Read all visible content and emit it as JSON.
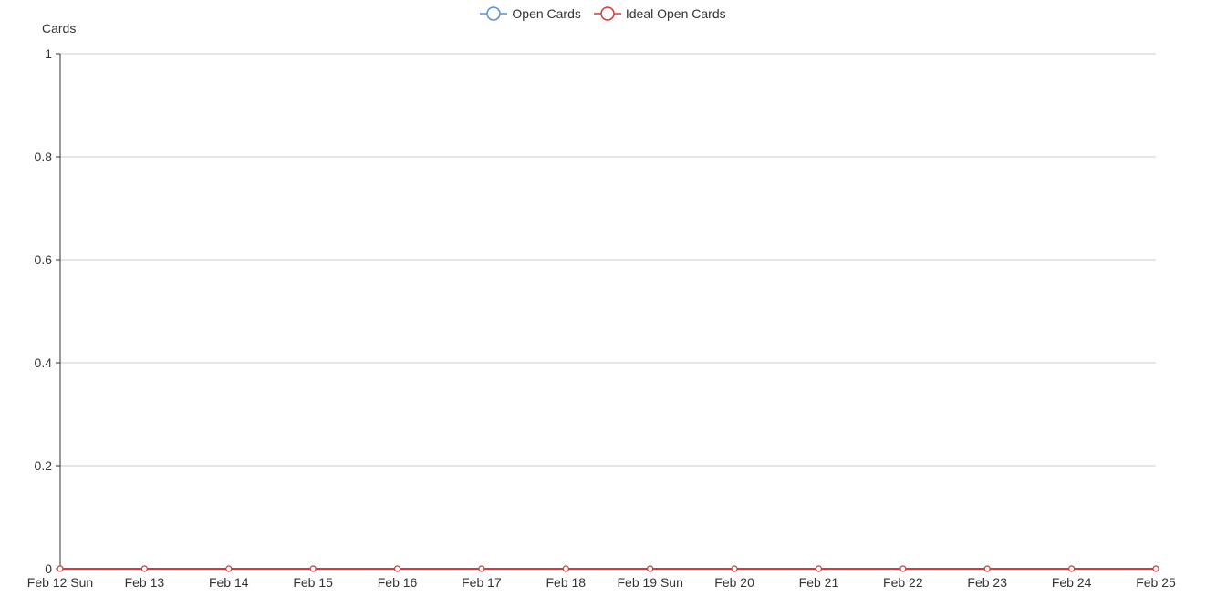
{
  "chart_data": {
    "type": "line",
    "ylabel": "Cards",
    "xlabel": "",
    "ylim": [
      0,
      1
    ],
    "yticks": [
      "0",
      "0.2",
      "0.4",
      "0.6",
      "0.8",
      "1"
    ],
    "categories": [
      "Feb 12 Sun",
      "Feb 13",
      "Feb 14",
      "Feb 15",
      "Feb 16",
      "Feb 17",
      "Feb 18",
      "Feb 19 Sun",
      "Feb 20",
      "Feb 21",
      "Feb 22",
      "Feb 23",
      "Feb 24",
      "Feb 25"
    ],
    "series": [
      {
        "name": "Open Cards",
        "color": "#5b8fd4",
        "values": [
          0,
          0,
          0,
          0,
          0,
          0,
          0,
          0,
          0,
          0,
          0,
          0,
          0,
          0
        ]
      },
      {
        "name": "Ideal Open Cards",
        "color": "#d9383a",
        "values": [
          0,
          0,
          0,
          0,
          0,
          0,
          0,
          0,
          0,
          0,
          0,
          0,
          0,
          0
        ]
      }
    ],
    "grid": true,
    "legend_position": "top-center"
  }
}
